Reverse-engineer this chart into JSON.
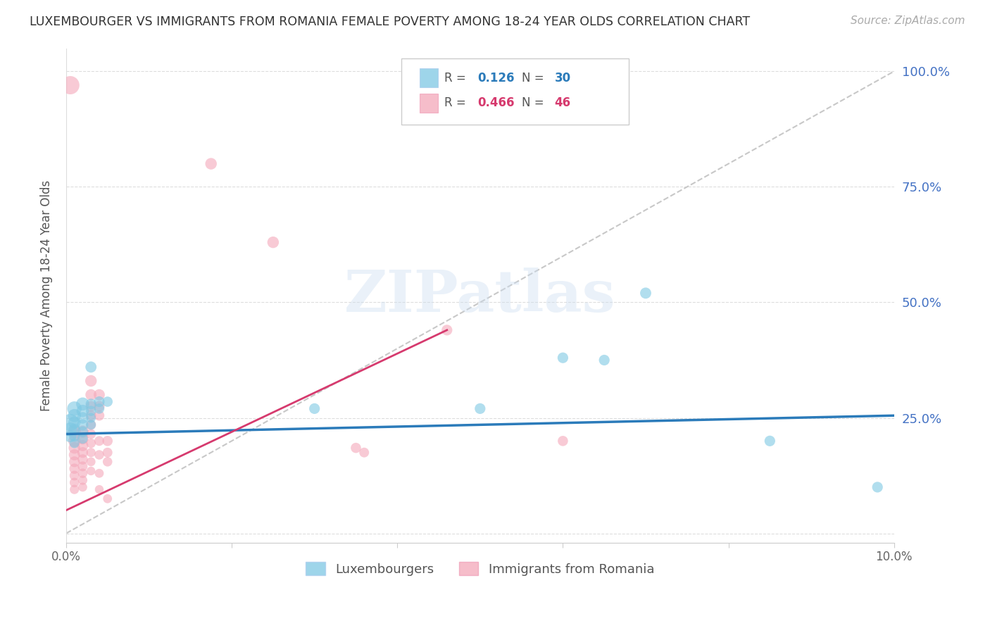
{
  "title": "LUXEMBOURGER VS IMMIGRANTS FROM ROMANIA FEMALE POVERTY AMONG 18-24 YEAR OLDS CORRELATION CHART",
  "source": "Source: ZipAtlas.com",
  "ylabel": "Female Poverty Among 18-24 Year Olds",
  "xlim": [
    0.0,
    0.1
  ],
  "ylim": [
    -0.02,
    1.05
  ],
  "yticks": [
    0.0,
    0.25,
    0.5,
    0.75,
    1.0
  ],
  "ytick_labels": [
    "",
    "25.0%",
    "50.0%",
    "75.0%",
    "100.0%"
  ],
  "xticks": [
    0.0,
    0.02,
    0.04,
    0.06,
    0.08,
    0.1
  ],
  "xtick_labels": [
    "0.0%",
    "",
    "",
    "",
    "",
    "10.0%"
  ],
  "blue_color": "#7ec8e3",
  "pink_color": "#f4a7b9",
  "blue_line_color": "#2b7bba",
  "pink_line_color": "#d63a6e",
  "diagonal_color": "#c8c8c8",
  "watermark": "ZIPatlas",
  "blue_line": [
    0.0,
    0.215,
    0.1,
    0.255
  ],
  "pink_line": [
    0.0,
    0.05,
    0.046,
    0.44
  ],
  "blue_points": [
    [
      0.0005,
      0.24
    ],
    [
      0.0005,
      0.225
    ],
    [
      0.0005,
      0.21
    ],
    [
      0.001,
      0.27
    ],
    [
      0.001,
      0.255
    ],
    [
      0.001,
      0.24
    ],
    [
      0.001,
      0.225
    ],
    [
      0.001,
      0.21
    ],
    [
      0.001,
      0.195
    ],
    [
      0.002,
      0.28
    ],
    [
      0.002,
      0.265
    ],
    [
      0.002,
      0.25
    ],
    [
      0.002,
      0.235
    ],
    [
      0.002,
      0.22
    ],
    [
      0.002,
      0.205
    ],
    [
      0.003,
      0.36
    ],
    [
      0.003,
      0.28
    ],
    [
      0.003,
      0.265
    ],
    [
      0.003,
      0.25
    ],
    [
      0.003,
      0.235
    ],
    [
      0.004,
      0.285
    ],
    [
      0.004,
      0.27
    ],
    [
      0.005,
      0.285
    ],
    [
      0.03,
      0.27
    ],
    [
      0.05,
      0.27
    ],
    [
      0.06,
      0.38
    ],
    [
      0.065,
      0.375
    ],
    [
      0.07,
      0.52
    ],
    [
      0.085,
      0.2
    ],
    [
      0.098,
      0.1
    ]
  ],
  "blue_point_sizes": [
    300,
    200,
    150,
    220,
    180,
    160,
    140,
    120,
    100,
    180,
    160,
    140,
    130,
    120,
    110,
    130,
    120,
    110,
    100,
    100,
    120,
    110,
    110,
    120,
    120,
    120,
    120,
    130,
    120,
    120
  ],
  "pink_points": [
    [
      0.0005,
      0.97
    ],
    [
      0.001,
      0.22
    ],
    [
      0.001,
      0.2
    ],
    [
      0.001,
      0.185
    ],
    [
      0.001,
      0.17
    ],
    [
      0.001,
      0.155
    ],
    [
      0.001,
      0.14
    ],
    [
      0.001,
      0.125
    ],
    [
      0.001,
      0.11
    ],
    [
      0.001,
      0.095
    ],
    [
      0.002,
      0.22
    ],
    [
      0.002,
      0.205
    ],
    [
      0.002,
      0.19
    ],
    [
      0.002,
      0.175
    ],
    [
      0.002,
      0.16
    ],
    [
      0.002,
      0.145
    ],
    [
      0.002,
      0.13
    ],
    [
      0.002,
      0.115
    ],
    [
      0.002,
      0.1
    ],
    [
      0.003,
      0.33
    ],
    [
      0.003,
      0.3
    ],
    [
      0.003,
      0.275
    ],
    [
      0.003,
      0.255
    ],
    [
      0.003,
      0.235
    ],
    [
      0.003,
      0.215
    ],
    [
      0.003,
      0.195
    ],
    [
      0.003,
      0.175
    ],
    [
      0.003,
      0.155
    ],
    [
      0.003,
      0.135
    ],
    [
      0.004,
      0.3
    ],
    [
      0.004,
      0.275
    ],
    [
      0.004,
      0.255
    ],
    [
      0.004,
      0.2
    ],
    [
      0.004,
      0.17
    ],
    [
      0.004,
      0.13
    ],
    [
      0.004,
      0.095
    ],
    [
      0.005,
      0.2
    ],
    [
      0.005,
      0.175
    ],
    [
      0.005,
      0.155
    ],
    [
      0.005,
      0.075
    ],
    [
      0.0175,
      0.8
    ],
    [
      0.025,
      0.63
    ],
    [
      0.035,
      0.185
    ],
    [
      0.036,
      0.175
    ],
    [
      0.046,
      0.44
    ],
    [
      0.06,
      0.2
    ]
  ],
  "pink_point_sizes": [
    350,
    180,
    160,
    140,
    130,
    120,
    110,
    100,
    95,
    90,
    160,
    140,
    130,
    120,
    110,
    100,
    95,
    90,
    85,
    140,
    130,
    120,
    110,
    105,
    100,
    95,
    90,
    85,
    80,
    130,
    120,
    110,
    100,
    95,
    85,
    80,
    110,
    100,
    95,
    85,
    140,
    140,
    110,
    100,
    120,
    110
  ]
}
